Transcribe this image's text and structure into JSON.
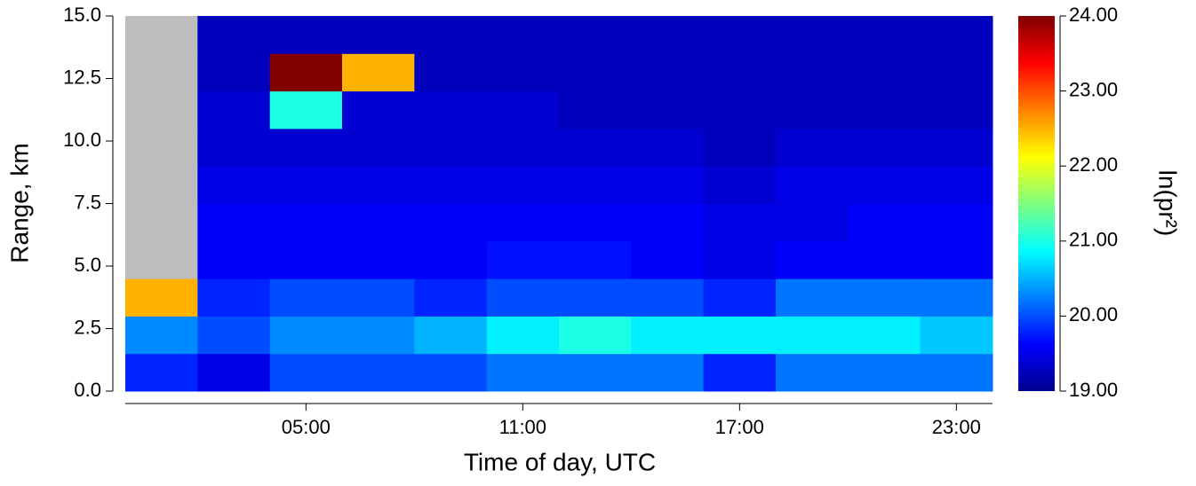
{
  "chart_data": {
    "type": "heatmap",
    "xlabel": "Time of day, UTC",
    "ylabel": "Range, km",
    "colorbar_label": "ln(pr²)",
    "x": [
      0,
      2,
      4,
      6,
      8,
      10,
      12,
      14,
      16,
      18,
      20,
      22,
      24
    ],
    "y": [
      0,
      1.5,
      3,
      4.5,
      6,
      7.5,
      9,
      10.5,
      12,
      13.5,
      15
    ],
    "z": [
      [
        19.8,
        19.5,
        20.0,
        20.0,
        20.0,
        20.2,
        20.2,
        20.2,
        19.8,
        20.2,
        20.2,
        20.2
      ],
      [
        20.3,
        20.0,
        20.3,
        20.3,
        20.5,
        20.8,
        21.0,
        20.8,
        20.8,
        20.8,
        20.8,
        20.6
      ],
      [
        22.5,
        19.8,
        20.0,
        20.0,
        19.8,
        20.0,
        20.0,
        20.0,
        19.8,
        20.2,
        20.2,
        20.2
      ],
      [
        null,
        19.6,
        19.6,
        19.6,
        19.6,
        19.7,
        19.7,
        19.6,
        19.5,
        19.6,
        19.6,
        19.6
      ],
      [
        null,
        19.6,
        19.6,
        19.6,
        19.6,
        19.6,
        19.6,
        19.6,
        19.5,
        19.5,
        19.6,
        19.6
      ],
      [
        null,
        19.5,
        19.5,
        19.5,
        19.5,
        19.5,
        19.5,
        19.5,
        19.4,
        19.5,
        19.5,
        19.5
      ],
      [
        null,
        19.4,
        19.4,
        19.4,
        19.4,
        19.4,
        19.4,
        19.4,
        19.3,
        19.4,
        19.4,
        19.4
      ],
      [
        null,
        19.4,
        21.0,
        19.4,
        19.4,
        19.4,
        19.3,
        19.3,
        19.3,
        19.3,
        19.3,
        19.3
      ],
      [
        null,
        19.3,
        24.0,
        22.5,
        19.3,
        19.3,
        19.3,
        19.3,
        19.3,
        19.3,
        19.3,
        19.3
      ],
      [
        null,
        19.3,
        19.3,
        19.3,
        19.3,
        19.3,
        19.3,
        19.3,
        19.3,
        19.3,
        19.3,
        19.3
      ]
    ],
    "xlim": [
      0,
      24
    ],
    "xticks": [
      {
        "value": 5,
        "label": "05:00"
      },
      {
        "value": 11,
        "label": "11:00"
      },
      {
        "value": 17,
        "label": "17:00"
      },
      {
        "value": 23,
        "label": "23:00"
      }
    ],
    "ylim": [
      0,
      15
    ],
    "yticks": [
      {
        "value": 0,
        "label": "0.0"
      },
      {
        "value": 2.5,
        "label": "2.5"
      },
      {
        "value": 5,
        "label": "5.0"
      },
      {
        "value": 7.5,
        "label": "7.5"
      },
      {
        "value": 10,
        "label": "10.0"
      },
      {
        "value": 12.5,
        "label": "12.5"
      },
      {
        "value": 15,
        "label": "15.0"
      }
    ],
    "clim": [
      19,
      24
    ],
    "cticks": [
      {
        "value": 19,
        "label": "19.00"
      },
      {
        "value": 20,
        "label": "20.00"
      },
      {
        "value": 21,
        "label": "21.00"
      },
      {
        "value": 22,
        "label": "22.00"
      },
      {
        "value": 23,
        "label": "23.00"
      },
      {
        "value": 24,
        "label": "24.00"
      }
    ],
    "colormap": "jet",
    "missing_color": "#bdbdbd"
  }
}
